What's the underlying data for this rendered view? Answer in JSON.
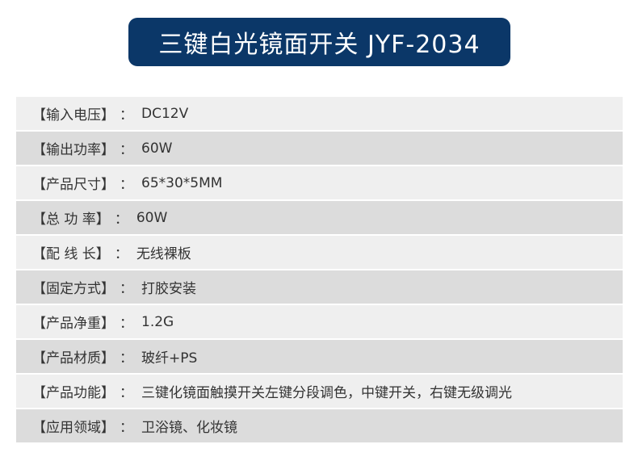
{
  "title": "三键白光镜面开关 JYF-2034",
  "separator": "：",
  "colors": {
    "title_bg": "#0b3768",
    "row_light": "#efefef",
    "row_dark": "#dcdcdc"
  },
  "specs": [
    {
      "label": "【输入电压】",
      "value": "DC12V"
    },
    {
      "label": "【输出功率】",
      "value": "60W"
    },
    {
      "label": "【产品尺寸】",
      "value": "65*30*5MM"
    },
    {
      "label": "【总 功 率】",
      "value": "60W"
    },
    {
      "label": "【配 线 长】",
      "value": "无线裸板"
    },
    {
      "label": "【固定方式】",
      "value": "打胶安装"
    },
    {
      "label": "【产品净重】",
      "value": "1.2G"
    },
    {
      "label": "【产品材质】",
      "value": "玻纤+PS"
    },
    {
      "label": "【产品功能】",
      "value": "三键化镜面触摸开关左键分段调色，中键开关，右键无级调光"
    },
    {
      "label": "【应用领域】",
      "value": "卫浴镜、化妆镜"
    }
  ]
}
